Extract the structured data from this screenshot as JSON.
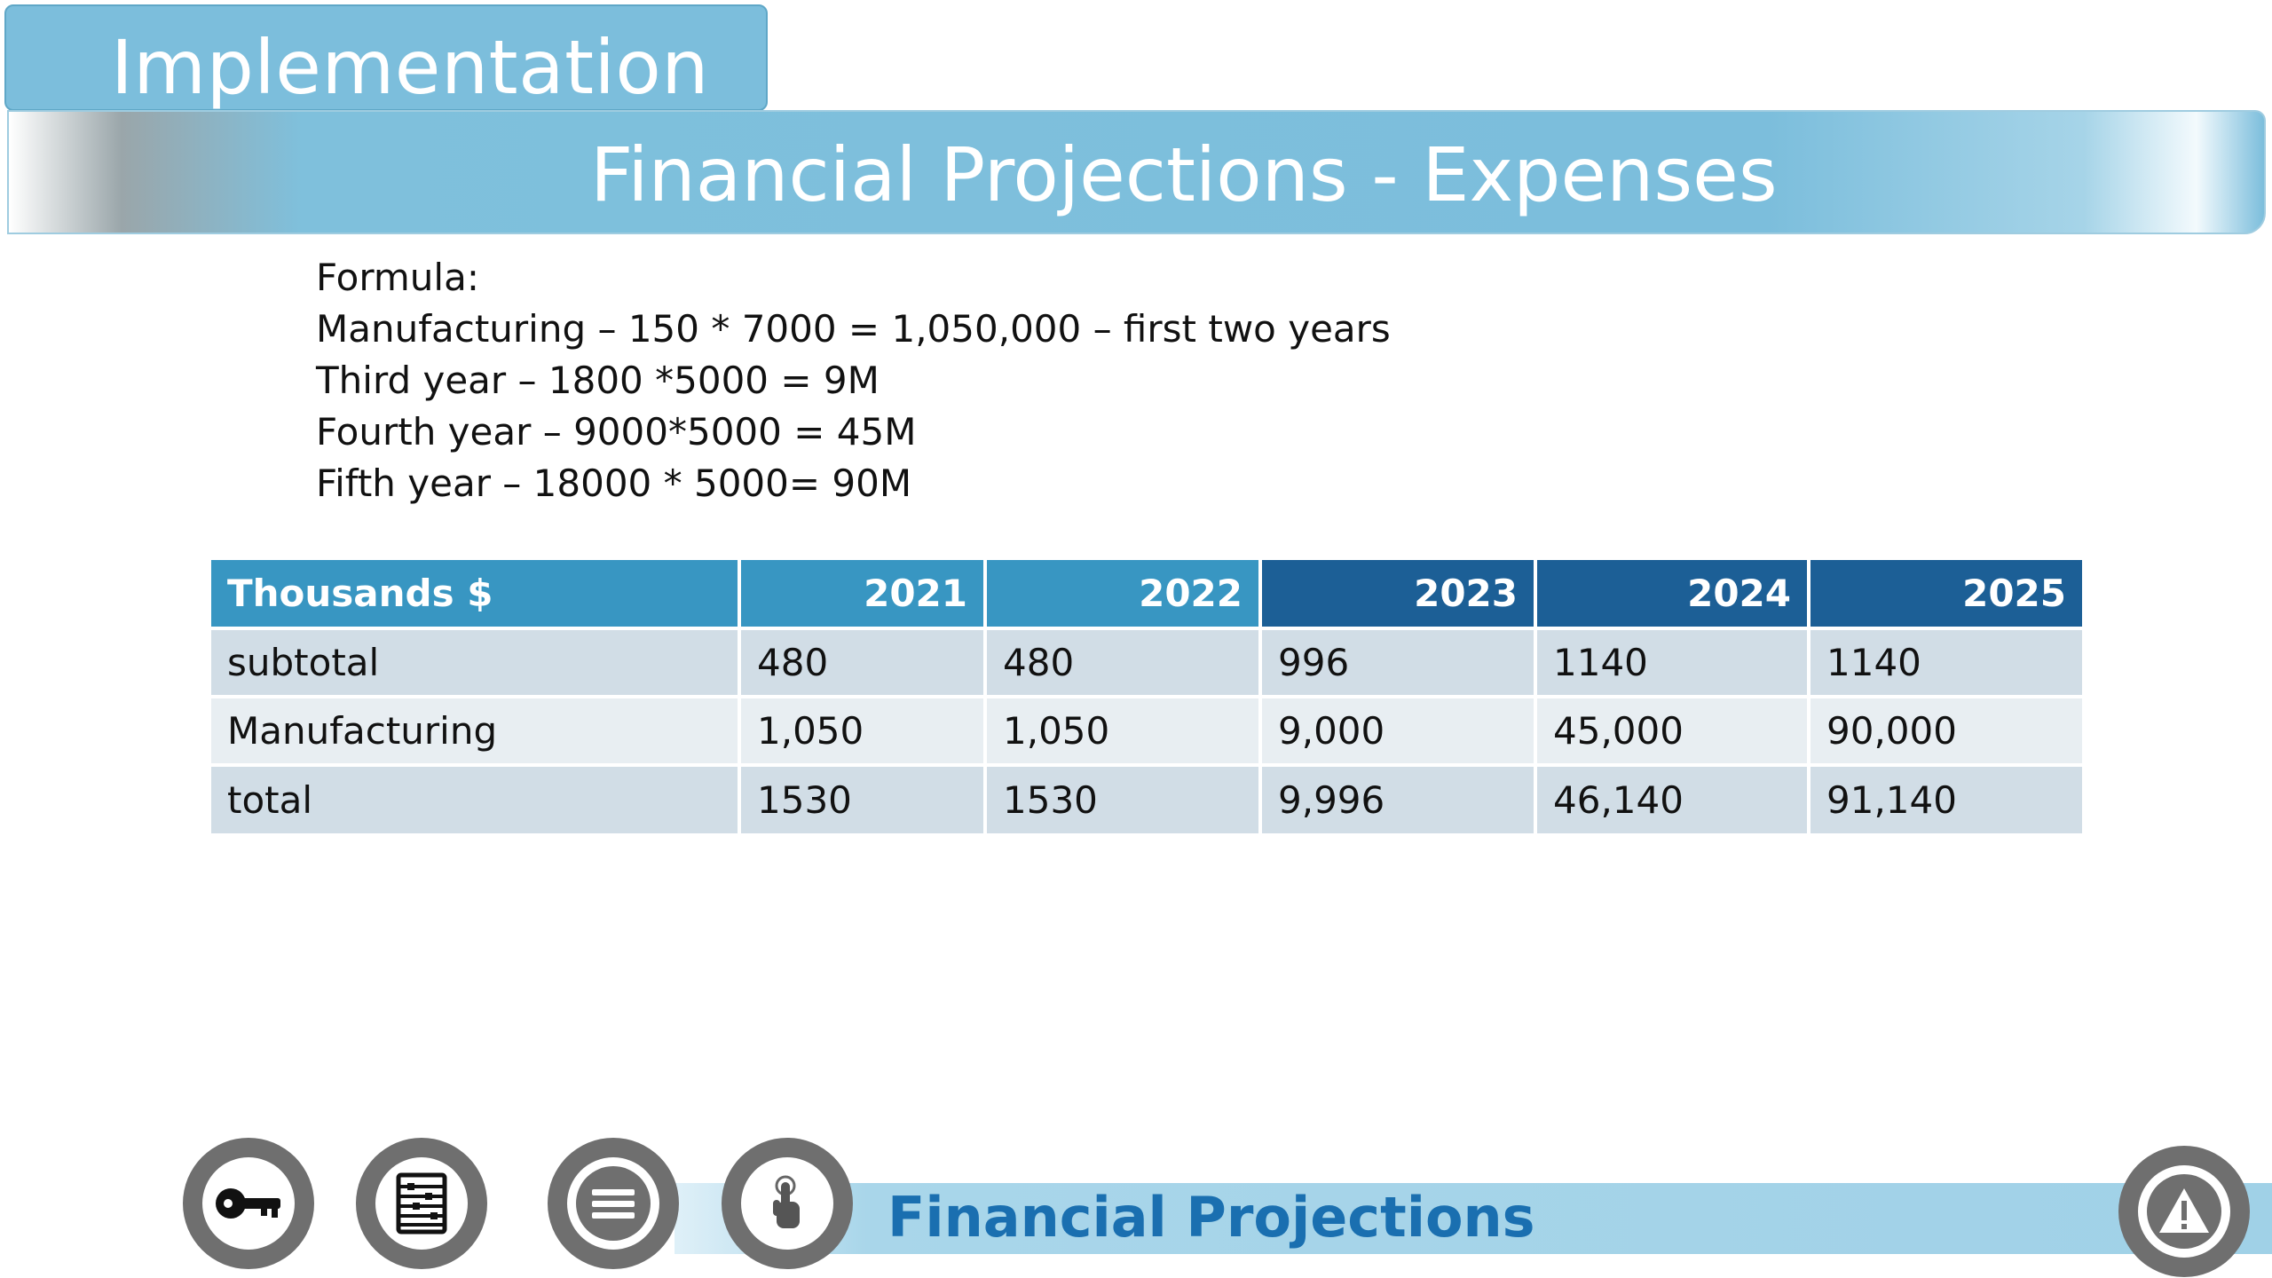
{
  "section": "Implementation",
  "title": "Financial Projections - Expenses",
  "formula": {
    "heading": "Formula:",
    "lines": [
      "Manufacturing – 150 * 7000 = 1,050,000 – first two years",
      "Third year – 1800 *5000 =  9M",
      "Fourth year – 9000*5000 = 45M",
      "Fifth year – 18000 * 5000= 90M"
    ]
  },
  "table": {
    "header": [
      "Thousands $",
      "2021",
      "2022",
      "2023",
      "2024",
      "2025"
    ],
    "rows": [
      [
        "subtotal",
        "480",
        "480",
        "996",
        "1140",
        "1140"
      ],
      [
        "Manufacturing",
        "1,050",
        "1,050",
        "9,000",
        "45,000",
        "90,000"
      ],
      [
        "total",
        "1530",
        "1530",
        "9,996",
        "46,140",
        "91,140"
      ]
    ]
  },
  "footer": {
    "label": "Financial Projections",
    "buttons": [
      "key-icon",
      "abacus-icon",
      "menu-icon",
      "touch-icon",
      "warning-icon"
    ]
  },
  "colors": {
    "accent_light": "#7cbedc",
    "header_light": "#3896c2",
    "header_dark": "#1c5f96",
    "footer_text": "#1a6fb0"
  }
}
